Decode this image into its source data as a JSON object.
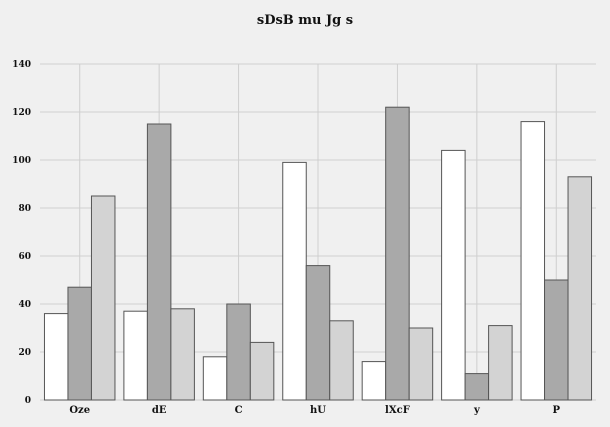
{
  "chart_data": {
    "type": "bar",
    "title": "sDsB mu Jg s",
    "xlabel": "",
    "ylabel": "",
    "categories": [
      "Oze",
      "dE",
      "C",
      "hU",
      "lXcF",
      "y",
      "P"
    ],
    "series": [
      {
        "values": [
          36,
          37,
          18,
          99,
          16,
          104,
          116
        ],
        "color": "#ffffff"
      },
      {
        "values": [
          47,
          115,
          40,
          56,
          122,
          11,
          50
        ],
        "color": "#a9a9a9"
      },
      {
        "values": [
          85,
          38,
          24,
          33,
          30,
          31,
          93
        ],
        "color": "#d3d3d3"
      }
    ],
    "yticks": [
      0,
      20,
      40,
      60,
      80,
      100,
      120,
      140
    ],
    "ylim": [
      0,
      140
    ],
    "grid": true,
    "legend": "none"
  }
}
